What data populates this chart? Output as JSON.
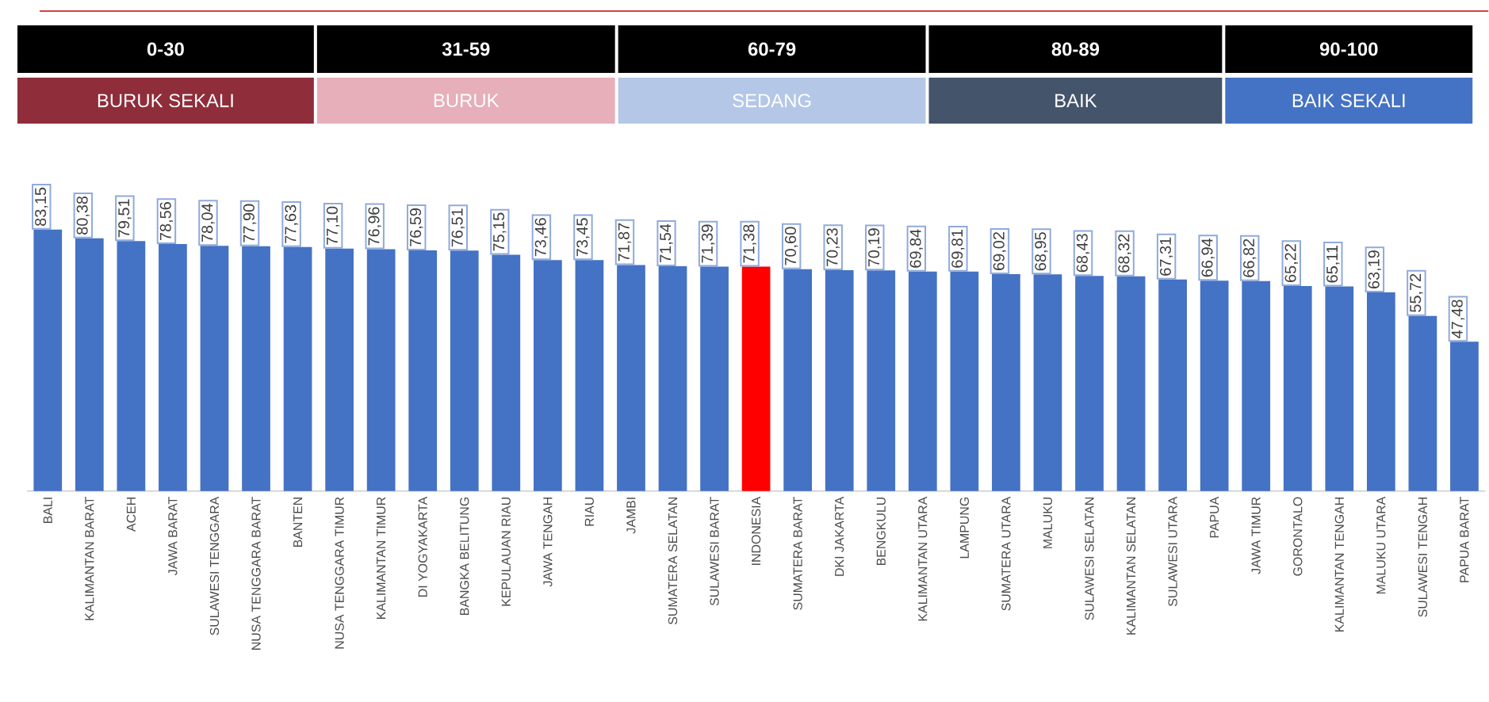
{
  "chart_data": {
    "type": "bar",
    "annotations": [
      "0-30",
      "BURUK SEKALI",
      "31-59",
      "BURUK",
      "60-79",
      "SEDANG",
      "80-89",
      "BAIK",
      "90-100",
      "BAIK SEKALI"
    ],
    "categories": [
      "BALI",
      "KALIMANTAN BARAT",
      "ACEH",
      "JAWA BARAT",
      "SULAWESI TENGGARA",
      "NUSA TENGGARA BARAT",
      "BANTEN",
      "NUSA TENGGARA TIMUR",
      "KALIMANTAN TIMUR",
      "DI YOGYAKARTA",
      "BANGKA BELITUNG",
      "KEPULAUAN RIAU",
      "JAWA TENGAH",
      "RIAU",
      "JAMBI",
      "SUMATERA SELATAN",
      "SULAWESI BARAT",
      "INDONESIA",
      "SUMATERA BARAT",
      "DKI JAKARTA",
      "BENGKULU",
      "KALIMANTAN UTARA",
      "LAMPUNG",
      "SUMATERA UTARA",
      "MALUKU",
      "SULAWESI SELATAN",
      "KALIMANTAN SELATAN",
      "SULAWESI UTARA",
      "PAPUA",
      "JAWA TIMUR",
      "GORONTALO",
      "KALIMANTAN TENGAH",
      "MALUKU UTARA",
      "SULAWESI TENGAH",
      "PAPUA BARAT"
    ],
    "values": [
      83.15,
      80.38,
      79.51,
      78.56,
      78.04,
      77.9,
      77.63,
      77.1,
      76.96,
      76.59,
      76.51,
      75.15,
      73.46,
      73.45,
      71.87,
      71.54,
      71.39,
      71.38,
      70.6,
      70.23,
      70.19,
      69.84,
      69.81,
      69.02,
      68.95,
      68.43,
      68.32,
      67.31,
      66.94,
      66.82,
      65.22,
      65.11,
      63.19,
      55.72,
      47.48
    ],
    "value_labels": [
      "83,15",
      "80,38",
      "79,51",
      "78,56",
      "78,04",
      "77,90",
      "77,63",
      "77,10",
      "76,96",
      "76,59",
      "76,51",
      "75,15",
      "73,46",
      "73,45",
      "71,87",
      "71,54",
      "71,39",
      "71,38",
      "70,60",
      "70,23",
      "70,19",
      "69,84",
      "69,81",
      "69,02",
      "68,95",
      "68,43",
      "68,32",
      "67,31",
      "66,94",
      "66,82",
      "65,22",
      "65,11",
      "63,19",
      "55,72",
      "47,48"
    ],
    "colors": [
      "#4472c4",
      "#4472c4",
      "#4472c4",
      "#4472c4",
      "#4472c4",
      "#4472c4",
      "#4472c4",
      "#4472c4",
      "#4472c4",
      "#4472c4",
      "#4472c4",
      "#4472c4",
      "#4472c4",
      "#4472c4",
      "#4472c4",
      "#4472c4",
      "#4472c4",
      "#ff0000",
      "#4472c4",
      "#4472c4",
      "#4472c4",
      "#4472c4",
      "#4472c4",
      "#4472c4",
      "#4472c4",
      "#4472c4",
      "#4472c4",
      "#4472c4",
      "#4472c4",
      "#4472c4",
      "#4472c4",
      "#4472c4",
      "#4472c4",
      "#4472c4",
      "#4472c4"
    ]
  }
}
